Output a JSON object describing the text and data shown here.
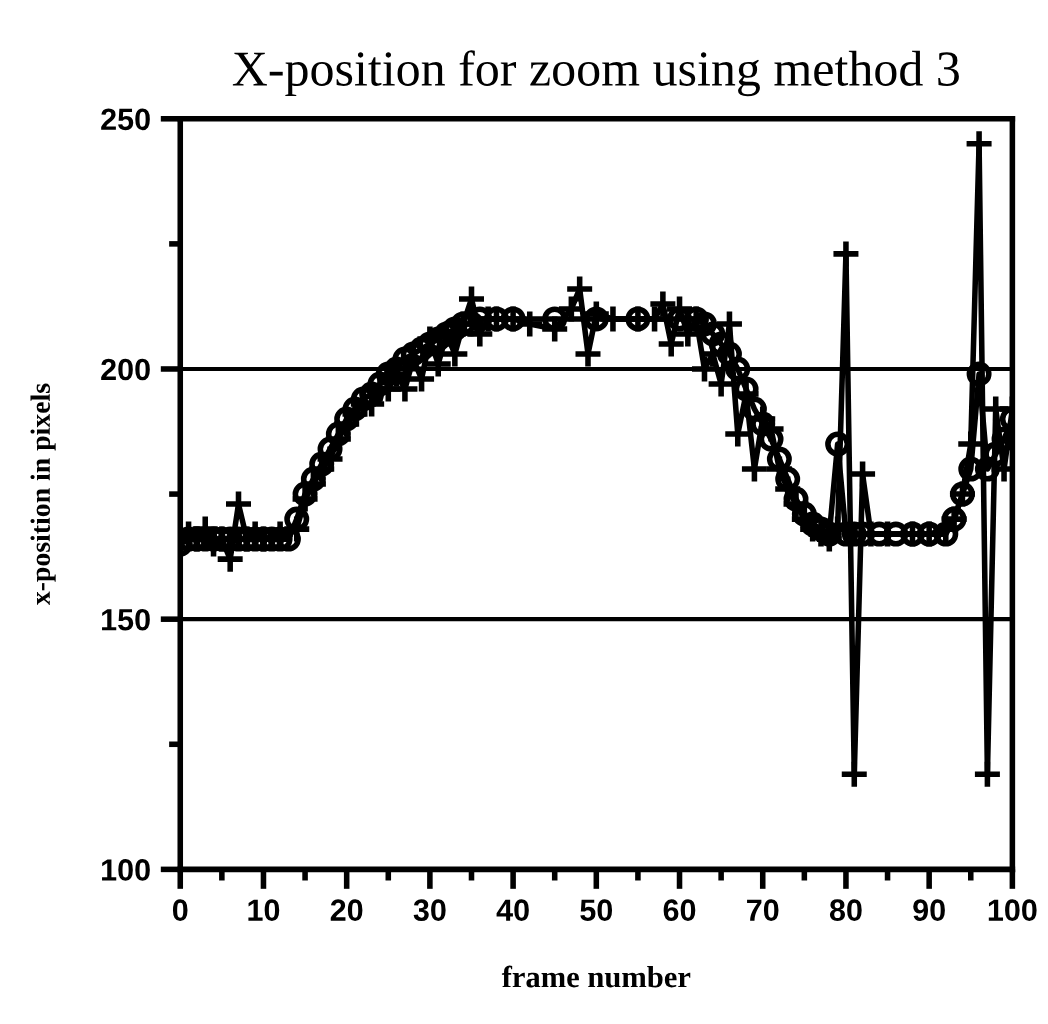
{
  "chart_data": {
    "type": "line",
    "title": "X-position for zoom using method 3",
    "xlabel": "frame number",
    "ylabel": "x-position in pixels",
    "xlim": [
      0,
      100
    ],
    "ylim": [
      100,
      250
    ],
    "xticks": [
      0,
      10,
      20,
      30,
      40,
      50,
      60,
      70,
      80,
      90,
      100
    ],
    "yticks": [
      100,
      150,
      200,
      250
    ],
    "grid": "y",
    "series": [
      {
        "color": "#000000",
        "marker": "circle",
        "x": [
          0,
          1,
          2,
          3,
          4,
          5,
          6,
          7,
          8,
          9,
          10,
          11,
          12,
          13,
          14,
          15,
          16,
          17,
          18,
          19,
          20,
          21,
          22,
          23,
          24,
          25,
          26,
          27,
          28,
          29,
          30,
          31,
          32,
          33,
          34,
          35,
          36,
          38,
          40,
          45,
          50,
          55,
          60,
          62,
          63,
          64,
          65,
          66,
          67,
          68,
          69,
          70,
          71,
          72,
          73,
          74,
          75,
          76,
          77,
          78,
          79,
          80,
          81,
          82,
          84,
          86,
          88,
          90,
          92,
          93,
          94,
          95,
          96,
          97,
          98,
          99,
          100
        ],
        "values": [
          165,
          166,
          166,
          166,
          166,
          166,
          166,
          166,
          166,
          166,
          166,
          166,
          166,
          166,
          170,
          175,
          178,
          181,
          184,
          187,
          190,
          192,
          194,
          195,
          197,
          199,
          200,
          202,
          203,
          204,
          205,
          206,
          207,
          208,
          209,
          209,
          210,
          210,
          210,
          210,
          210,
          210,
          210,
          210,
          209,
          207,
          205,
          203,
          200,
          196,
          192,
          189,
          186,
          182,
          178,
          174,
          171,
          169,
          168,
          167,
          185,
          167,
          167,
          167,
          167,
          167,
          167,
          167,
          167,
          170,
          175,
          180,
          199,
          180,
          183,
          186,
          190
        ]
      },
      {
        "color": "#000000",
        "marker": "cross",
        "x": [
          0,
          1,
          2,
          3,
          4,
          5,
          6,
          7,
          8,
          9,
          10,
          12,
          14,
          15,
          16,
          17,
          18,
          19,
          20,
          21,
          22,
          23,
          24,
          25,
          26,
          27,
          28,
          29,
          30,
          31,
          32,
          33,
          34,
          35,
          36,
          37,
          38,
          40,
          42,
          45,
          47,
          48,
          49,
          50,
          52,
          55,
          57,
          58,
          59,
          60,
          61,
          62,
          63,
          64,
          65,
          66,
          67,
          68,
          69,
          70,
          71,
          72,
          73,
          74,
          75,
          76,
          77,
          78,
          79,
          80,
          81,
          82,
          83,
          85,
          88,
          90,
          92,
          93,
          94,
          95,
          96,
          97,
          98,
          99,
          100
        ],
        "values": [
          166,
          167,
          166,
          168,
          165,
          166,
          162,
          173,
          166,
          167,
          166,
          167,
          168,
          174,
          177,
          180,
          182,
          186,
          189,
          191,
          193,
          193,
          196,
          196,
          199,
          196,
          202,
          198,
          206,
          201,
          207,
          203,
          209,
          214,
          207,
          210,
          210,
          210,
          209,
          208,
          212,
          216,
          203,
          211,
          210,
          210,
          210,
          213,
          205,
          212,
          207,
          210,
          200,
          203,
          197,
          209,
          187,
          195,
          180,
          190,
          188,
          180,
          176,
          173,
          170,
          168,
          167,
          166,
          168,
          223,
          119,
          179,
          167,
          167,
          167,
          167,
          168,
          170,
          175,
          185,
          245,
          119,
          192,
          180,
          192
        ]
      }
    ]
  }
}
